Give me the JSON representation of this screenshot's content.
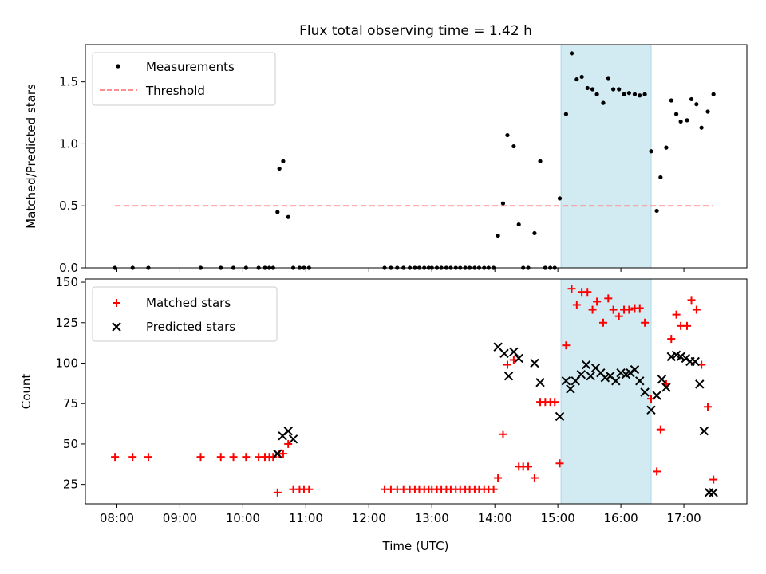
{
  "title": "Flux total observing time = 1.42 h",
  "chart_data": [
    {
      "type": "scatter",
      "ylabel": "Matched/Predicted stars",
      "xlim": [
        7.5,
        18.0
      ],
      "ylim": [
        0,
        1.8
      ],
      "yticks": [
        0.0,
        0.5,
        1.0,
        1.5
      ],
      "ytick_labels": [
        "0.0",
        "0.5",
        "1.0",
        "1.5"
      ],
      "highlight_span": [
        15.05,
        16.48
      ],
      "highlight_color": "#add8e6",
      "legend_location": "upper-left",
      "series": [
        {
          "name": "Measurements",
          "marker": "dot",
          "color": "#000000",
          "x": [
            7.97,
            8.25,
            8.5,
            9.33,
            9.65,
            9.85,
            10.05,
            10.25,
            10.35,
            10.42,
            10.48,
            10.55,
            10.58,
            10.64,
            10.72,
            10.8,
            10.9,
            10.97,
            11.05,
            12.25,
            12.35,
            12.45,
            12.55,
            12.65,
            12.73,
            12.8,
            12.88,
            12.95,
            13.0,
            13.08,
            13.15,
            13.23,
            13.3,
            13.38,
            13.45,
            13.53,
            13.6,
            13.68,
            13.75,
            13.83,
            13.9,
            13.98,
            14.05,
            14.13,
            14.2,
            14.3,
            14.38,
            14.45,
            14.53,
            14.63,
            14.72,
            14.8,
            14.88,
            14.95,
            15.03,
            15.13,
            15.22,
            15.3,
            15.38,
            15.47,
            15.55,
            15.62,
            15.72,
            15.8,
            15.88,
            15.97,
            16.05,
            16.13,
            16.22,
            16.3,
            16.38,
            16.48,
            16.57,
            16.63,
            16.72,
            16.8,
            16.88,
            16.95,
            17.05,
            17.12,
            17.2,
            17.28,
            17.38,
            17.47
          ],
          "y": [
            0,
            0,
            0,
            0,
            0,
            0,
            0,
            0,
            0,
            0,
            0,
            0.45,
            0.8,
            0.86,
            0.41,
            0,
            0,
            0,
            0,
            0,
            0,
            0,
            0,
            0,
            0,
            0,
            0,
            0,
            0,
            0,
            0,
            0,
            0,
            0,
            0,
            0,
            0,
            0,
            0,
            0,
            0,
            0,
            0.26,
            0.52,
            1.07,
            0.98,
            0.35,
            0,
            0,
            0.28,
            0.86,
            0,
            0,
            0,
            0.56,
            1.24,
            1.73,
            1.52,
            1.54,
            1.45,
            1.44,
            1.4,
            1.33,
            1.53,
            1.44,
            1.44,
            1.4,
            1.41,
            1.4,
            1.39,
            1.4,
            0.94,
            0.46,
            0.73,
            0.97,
            1.35,
            1.24,
            1.18,
            1.19,
            1.36,
            1.32,
            1.13,
            1.26,
            1.4
          ]
        },
        {
          "name": "Threshold",
          "marker": "dashed-line",
          "color": "#ff7f7f",
          "x": [
            7.97,
            17.47
          ],
          "y": [
            0.5,
            0.5
          ]
        }
      ]
    },
    {
      "type": "scatter",
      "xlabel": "Time (UTC)",
      "ylabel": "Count",
      "xlim": [
        7.5,
        18.0
      ],
      "ylim": [
        13,
        152
      ],
      "yticks": [
        25,
        50,
        75,
        100,
        125,
        150
      ],
      "xticks": [
        8,
        9,
        10,
        11,
        12,
        13,
        14,
        15,
        16,
        17
      ],
      "xtick_labels": [
        "08:00",
        "09:00",
        "10:00",
        "11:00",
        "12:00",
        "13:00",
        "14:00",
        "15:00",
        "16:00",
        "17:00"
      ],
      "highlight_span": [
        15.05,
        16.48
      ],
      "highlight_color": "#add8e6",
      "legend_location": "upper-left",
      "series": [
        {
          "name": "Matched stars",
          "marker": "plus",
          "color": "#ff0000",
          "x": [
            7.97,
            8.25,
            8.5,
            9.33,
            9.65,
            9.85,
            10.05,
            10.25,
            10.35,
            10.42,
            10.48,
            10.55,
            10.58,
            10.64,
            10.72,
            10.8,
            10.9,
            10.97,
            11.05,
            12.25,
            12.35,
            12.45,
            12.55,
            12.65,
            12.73,
            12.8,
            12.88,
            12.95,
            13.0,
            13.08,
            13.15,
            13.23,
            13.3,
            13.38,
            13.45,
            13.53,
            13.6,
            13.68,
            13.75,
            13.83,
            13.9,
            13.98,
            14.05,
            14.13,
            14.2,
            14.3,
            14.38,
            14.45,
            14.53,
            14.63,
            14.72,
            14.8,
            14.88,
            14.95,
            15.03,
            15.13,
            15.22,
            15.3,
            15.38,
            15.47,
            15.55,
            15.62,
            15.72,
            15.8,
            15.88,
            15.97,
            16.05,
            16.13,
            16.22,
            16.3,
            16.38,
            16.48,
            16.57,
            16.63,
            16.72,
            16.8,
            16.88,
            16.95,
            17.05,
            17.12,
            17.2,
            17.28,
            17.38,
            17.47
          ],
          "y": [
            42,
            42,
            42,
            42,
            42,
            42,
            42,
            42,
            42,
            42,
            42,
            20,
            44,
            44,
            50,
            22,
            22,
            22,
            22,
            22,
            22,
            22,
            22,
            22,
            22,
            22,
            22,
            22,
            22,
            22,
            22,
            22,
            22,
            22,
            22,
            22,
            22,
            22,
            22,
            22,
            22,
            22,
            29,
            56,
            99,
            102,
            36,
            36,
            36,
            29,
            76,
            76,
            76,
            76,
            38,
            111,
            146,
            136,
            144,
            144,
            133,
            138,
            125,
            140,
            133,
            129,
            133,
            133,
            134,
            134,
            125,
            78,
            33,
            59,
            87,
            115,
            130,
            123,
            123,
            139,
            133,
            99,
            73,
            28
          ]
        },
        {
          "name": "Predicted stars",
          "marker": "x",
          "color": "#000000",
          "x": [
            10.55,
            10.63,
            10.72,
            10.8,
            14.05,
            14.15,
            14.22,
            14.3,
            14.38,
            14.63,
            14.72,
            15.03,
            15.13,
            15.2,
            15.28,
            15.37,
            15.45,
            15.52,
            15.6,
            15.68,
            15.75,
            15.83,
            15.92,
            16.0,
            16.08,
            16.15,
            16.22,
            16.3,
            16.38,
            16.48,
            16.57,
            16.65,
            16.72,
            16.8,
            16.88,
            16.95,
            17.03,
            17.1,
            17.18,
            17.25,
            17.32,
            17.4,
            17.47
          ],
          "y": [
            44,
            55,
            58,
            53,
            110,
            106,
            92,
            107,
            103,
            100,
            88,
            67,
            89,
            84,
            89,
            93,
            99,
            92,
            97,
            94,
            91,
            92,
            89,
            94,
            93,
            94,
            96,
            89,
            82,
            71,
            80,
            90,
            85,
            104,
            105,
            104,
            103,
            101,
            101,
            87,
            58,
            20,
            20
          ]
        }
      ]
    }
  ]
}
